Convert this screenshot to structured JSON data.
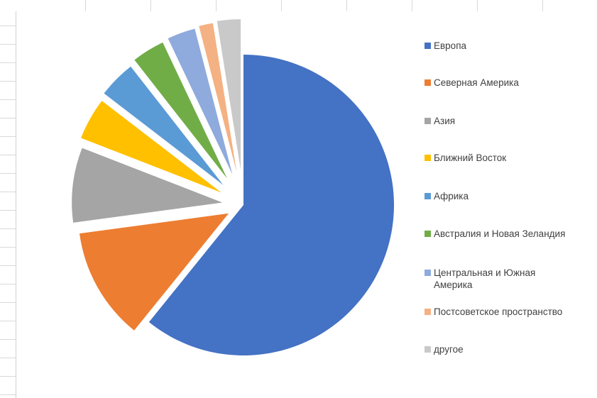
{
  "chart_data": {
    "type": "pie",
    "exploded": true,
    "legend_position": "right",
    "categories": [
      "Европа",
      "Северная Америка",
      "Азия",
      "Ближний Восток",
      "Африка",
      "Австралия и Новая Зеландия",
      "Центральная и Южная Америка",
      "Постсоветское пространство",
      "другое"
    ],
    "values": [
      60.5,
      12.0,
      8.0,
      4.5,
      4.0,
      3.5,
      3.0,
      1.5,
      2.5
    ],
    "colors": [
      "#4472C4",
      "#ED7D31",
      "#A5A5A5",
      "#FFC000",
      "#5B9BD5",
      "#70AD47",
      "#8FAADC",
      "#F4B183",
      "#C9C9C9"
    ]
  }
}
